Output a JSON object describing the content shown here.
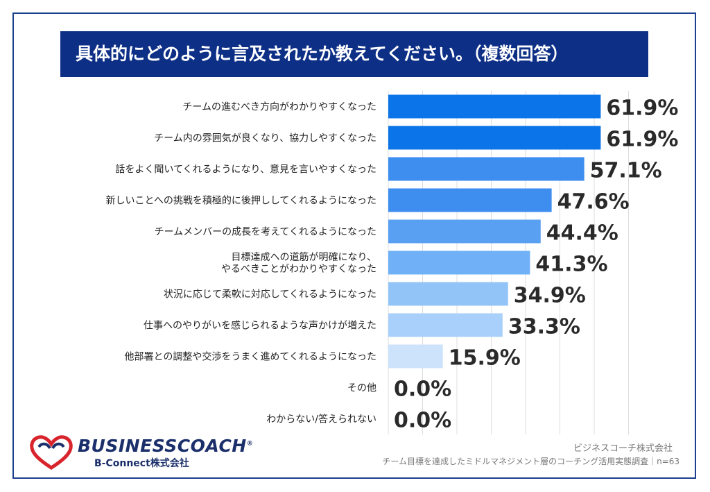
{
  "title": "具体的にどのように言及されたか教えてください。（複数回答）",
  "chart_data": {
    "type": "bar",
    "orientation": "horizontal",
    "categories": [
      [
        "チームの進むべき方向がわかりやすくなった"
      ],
      [
        "チーム内の雰囲気が良くなり、協力しやすくなった"
      ],
      [
        "話をよく聞いてくれるようになり、意見を言いやすくなった"
      ],
      [
        "新しいことへの挑戦を積極的に後押ししてくれるようになった"
      ],
      [
        "チームメンバーの成長を考えてくれるようになった"
      ],
      [
        "目標達成への道筋が明確になり、",
        "やるべきことがわかりやすくなった"
      ],
      [
        "状況に応じて柔軟に対応してくれるようになった"
      ],
      [
        "仕事へのやりがいを感じられるような声かけが増えた"
      ],
      [
        "他部署との調整や交渉をうまく進めてくれるようになった"
      ],
      [
        "その他"
      ],
      [
        "わからない/答えられない"
      ]
    ],
    "values": [
      61.9,
      61.9,
      57.1,
      47.6,
      44.4,
      41.3,
      34.9,
      33.3,
      15.9,
      0.0,
      0.0
    ],
    "value_labels": [
      "61.9%",
      "61.9%",
      "57.1%",
      "47.6%",
      "44.4%",
      "41.3%",
      "34.9%",
      "33.3%",
      "15.9%",
      "0.0%",
      "0.0%"
    ],
    "xlim": [
      0,
      70
    ],
    "grid": true,
    "colors": [
      "#0a74e8",
      "#0a74e8",
      "#3e8ef0",
      "#3e8ef0",
      "#5aa0f2",
      "#6fb0f7",
      "#92c4f8",
      "#a9d0fa",
      "#cde3fc",
      "#cde3fc",
      "#cde3fc"
    ]
  },
  "footer": {
    "logo_main": "BUSINESSCOACH",
    "logo_mark": "®",
    "logo_sub": "B-Connect株式会社",
    "source_company": "ビジネスコーチ株式会社",
    "source_survey": "チーム目標を達成したミドルマネジメント層のコーチング活用実態調査｜n=63"
  }
}
